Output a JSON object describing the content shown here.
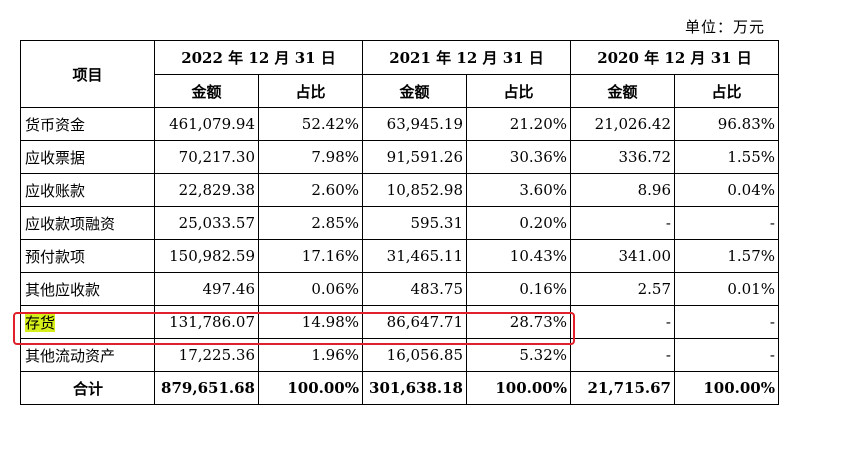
{
  "unit_label": "单位：万元",
  "header": {
    "item": "项目",
    "periods": [
      "2022 年 12 月 31 日",
      "2021 年 12 月 31 日",
      "2020 年 12 月 31 日"
    ],
    "amount": "金额",
    "ratio": "占比"
  },
  "rows": [
    {
      "label": "货币资金",
      "values": [
        "461,079.94",
        "52.42%",
        "63,945.19",
        "21.20%",
        "21,026.42",
        "96.83%"
      ]
    },
    {
      "label": "应收票据",
      "values": [
        "70,217.30",
        "7.98%",
        "91,591.26",
        "30.36%",
        "336.72",
        "1.55%"
      ]
    },
    {
      "label": "应收账款",
      "values": [
        "22,829.38",
        "2.60%",
        "10,852.98",
        "3.60%",
        "8.96",
        "0.04%"
      ]
    },
    {
      "label": "应收款项融资",
      "values": [
        "25,033.57",
        "2.85%",
        "595.31",
        "0.20%",
        "-",
        "-"
      ]
    },
    {
      "label": "预付款项",
      "values": [
        "150,982.59",
        "17.16%",
        "31,465.11",
        "10.43%",
        "341.00",
        "1.57%"
      ]
    },
    {
      "label": "其他应收款",
      "values": [
        "497.46",
        "0.06%",
        "483.75",
        "0.16%",
        "2.57",
        "0.01%"
      ]
    },
    {
      "label": "存货",
      "values": [
        "131,786.07",
        "14.98%",
        "86,647.71",
        "28.73%",
        "-",
        "-"
      ]
    },
    {
      "label": "其他流动资产",
      "values": [
        "17,225.36",
        "1.96%",
        "16,056.85",
        "5.32%",
        "-",
        "-"
      ]
    }
  ],
  "total": {
    "label": "合计",
    "values": [
      "879,651.68",
      "100.00%",
      "301,638.18",
      "100.00%",
      "21,715.67",
      "100.00%"
    ]
  },
  "colors": {
    "highlight_fill": "#d6ef1a",
    "highlight_border": "#e0202a"
  }
}
